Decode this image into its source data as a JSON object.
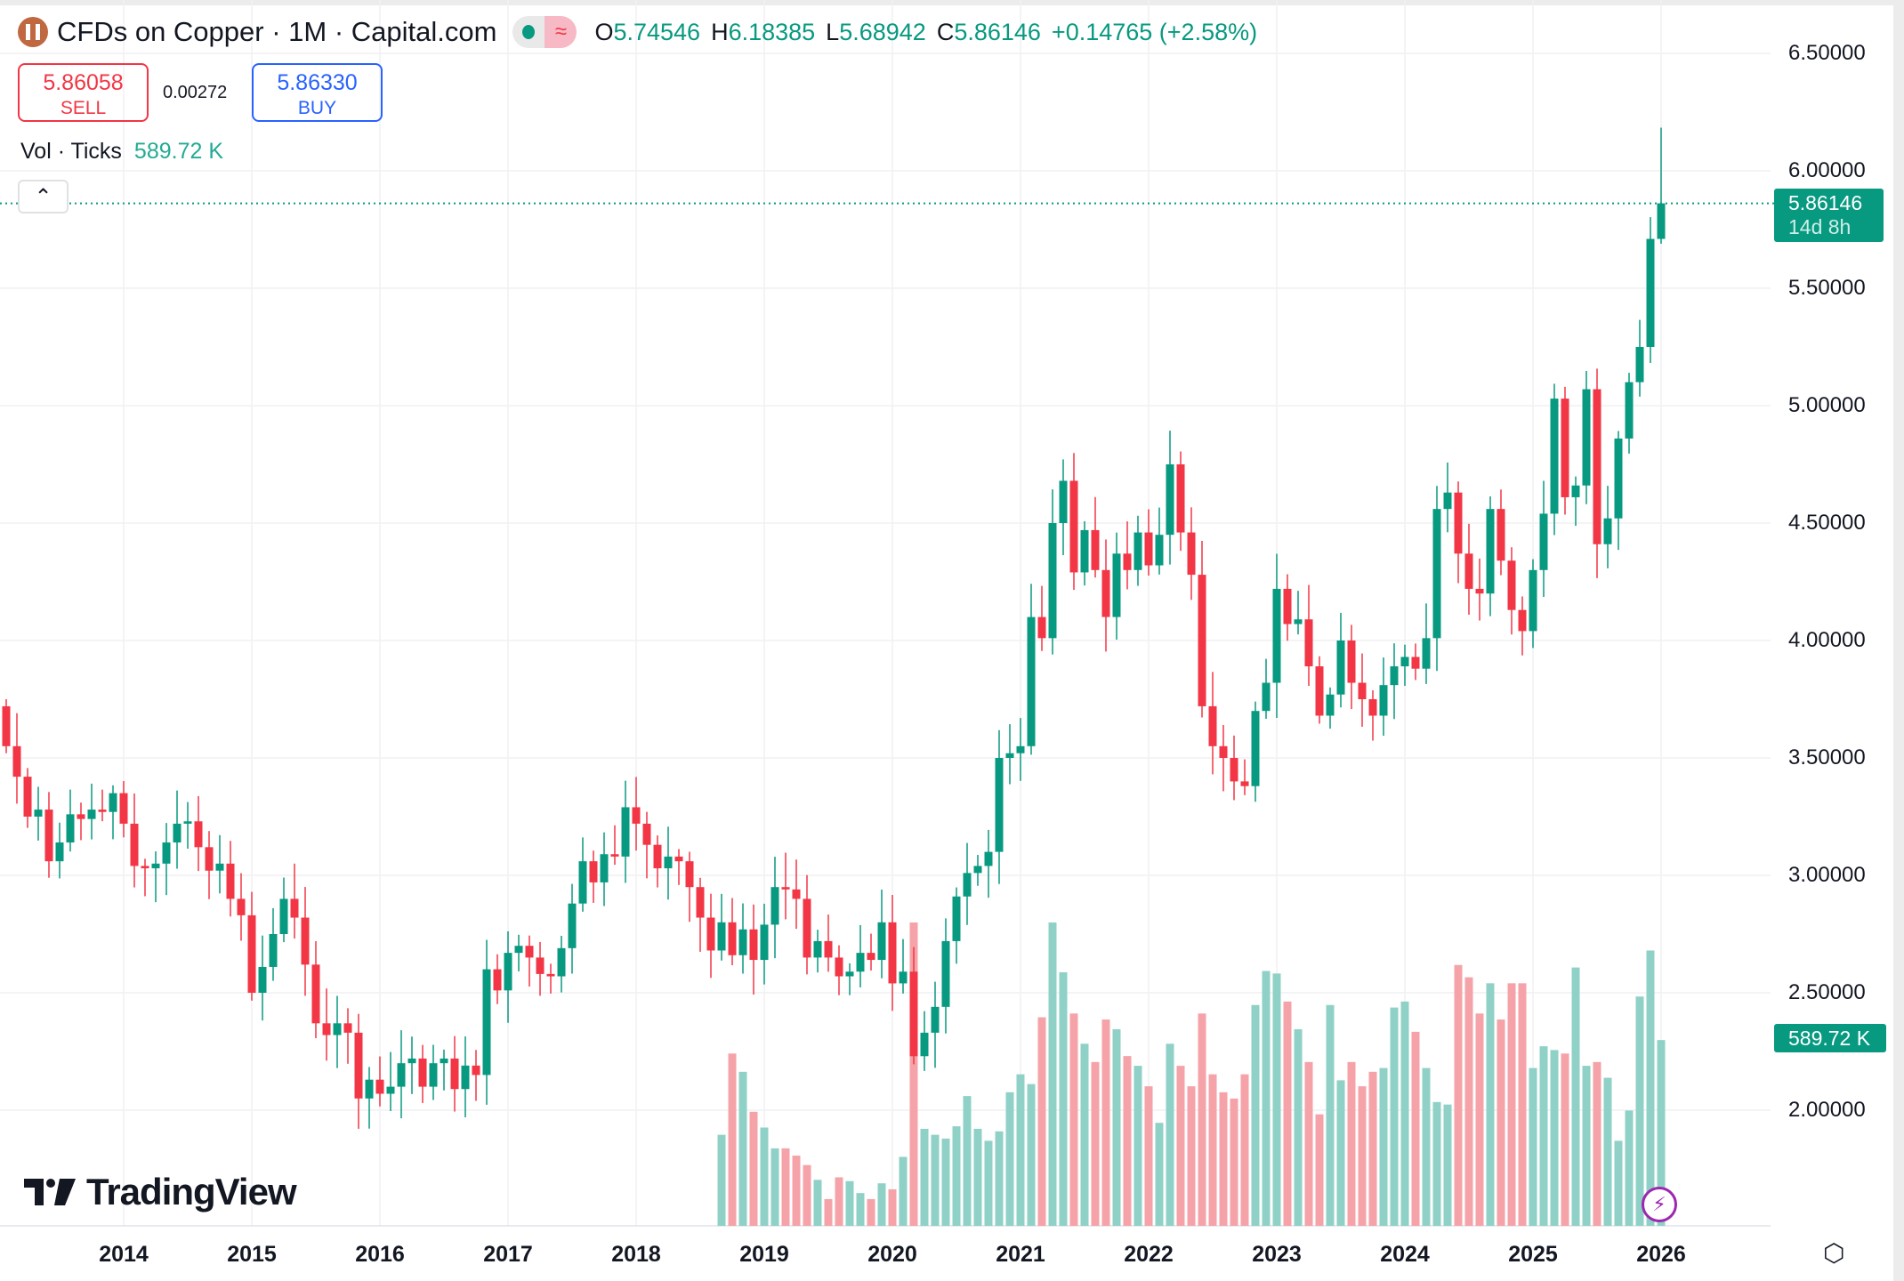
{
  "header": {
    "title": "CFDs on Copper · 1M · Capital.com",
    "o_label": "O",
    "o": "5.74546",
    "h_label": "H",
    "h": "6.18385",
    "l_label": "L",
    "l": "5.68942",
    "c_label": "C",
    "c": "5.86146",
    "change": "+0.14765 (+2.58%)"
  },
  "trade": {
    "sell_price": "5.86058",
    "sell_label": "SELL",
    "spread": "0.00272",
    "buy_price": "5.86330",
    "buy_label": "BUY"
  },
  "volume_legend": {
    "label": "Vol · Ticks",
    "value": "589.72 K"
  },
  "last_price": {
    "price": "5.86146",
    "countdown": "14d 8h"
  },
  "volume_label": "589.72 K",
  "branding": "TradingView",
  "colors": {
    "up": "#089981",
    "down": "#f23645",
    "vol_up": "#8fd1c6",
    "vol_down": "#f5a3a8"
  },
  "chart_data": {
    "type": "candlestick",
    "title": "CFDs on Copper · 1M · Capital.com",
    "start": "2013-02",
    "interval": "1M",
    "first_open": 3.72,
    "closes": [
      3.55,
      3.42,
      3.25,
      3.28,
      3.06,
      3.14,
      3.26,
      3.24,
      3.28,
      3.27,
      3.35,
      3.22,
      3.04,
      3.03,
      3.05,
      3.14,
      3.22,
      3.23,
      3.12,
      3.02,
      3.05,
      2.9,
      2.83,
      2.5,
      2.61,
      2.75,
      2.9,
      2.82,
      2.62,
      2.37,
      2.32,
      2.37,
      2.33,
      2.05,
      2.13,
      2.07,
      2.1,
      2.2,
      2.22,
      2.1,
      2.2,
      2.22,
      2.09,
      2.19,
      2.15,
      2.6,
      2.51,
      2.67,
      2.7,
      2.65,
      2.58,
      2.57,
      2.69,
      2.88,
      3.06,
      2.97,
      3.09,
      3.08,
      3.29,
      3.22,
      3.13,
      3.03,
      3.08,
      3.06,
      2.95,
      2.82,
      2.68,
      2.8,
      2.66,
      2.77,
      2.64,
      2.79,
      2.95,
      2.94,
      2.9,
      2.65,
      2.72,
      2.65,
      2.57,
      2.59,
      2.67,
      2.64,
      2.8,
      2.54,
      2.59,
      2.23,
      2.33,
      2.44,
      2.72,
      2.91,
      3.01,
      3.04,
      3.1,
      3.5,
      3.52,
      3.55,
      4.1,
      4.01,
      4.5,
      4.68,
      4.29,
      4.47,
      4.3,
      4.1,
      4.37,
      4.3,
      4.46,
      4.32,
      4.45,
      4.75,
      4.46,
      4.28,
      3.72,
      3.55,
      3.5,
      3.4,
      3.38,
      3.7,
      3.82,
      4.22,
      4.07,
      4.09,
      3.89,
      3.68,
      3.77,
      4.0,
      3.82,
      3.75,
      3.68,
      3.81,
      3.89,
      3.93,
      3.88,
      4.01,
      4.56,
      4.63,
      4.37,
      4.22,
      4.2,
      4.56,
      4.34,
      4.13,
      4.04,
      4.3,
      4.54,
      5.03,
      4.61,
      4.66,
      5.07,
      4.41,
      4.52,
      4.86,
      5.1,
      5.25,
      5.71,
      5.86146
    ],
    "last_high": 6.18385,
    "last_low": 5.68942,
    "volume_start": "2018-09",
    "volumes_k": [
      289,
      547,
      489,
      362,
      312,
      246,
      246,
      223,
      193,
      146,
      85,
      154,
      142,
      104,
      85,
      135,
      116,
      219,
      963,
      308,
      289,
      277,
      316,
      412,
      308,
      270,
      300,
      424,
      481,
      450,
      662,
      963,
      805,
      674,
      578,
      520,
      655,
      624,
      539,
      508,
      443,
      327,
      578,
      508,
      443,
      674,
      481,
      424,
      404,
      481,
      701,
      809,
      801,
      712,
      624,
      520,
      354,
      701,
      462,
      520,
      443,
      489,
      501,
      693,
      712,
      616,
      501,
      393,
      385,
      828,
      789,
      674,
      770,
      655,
      770,
      770,
      501,
      570,
      558,
      547,
      820,
      508,
      520,
      470,
      270,
      366,
      728,
      874,
      589.72
    ],
    "y_ticks": [
      "6.50000",
      "6.00000",
      "5.50000",
      "5.00000",
      "4.50000",
      "4.00000",
      "3.50000",
      "3.00000",
      "2.50000",
      "2.00000"
    ],
    "x_ticks": [
      "2014",
      "2015",
      "2016",
      "2017",
      "2018",
      "2019",
      "2020",
      "2021",
      "2022",
      "2023",
      "2024",
      "2025",
      "2026"
    ],
    "ylim": [
      1.5,
      6.5
    ]
  }
}
